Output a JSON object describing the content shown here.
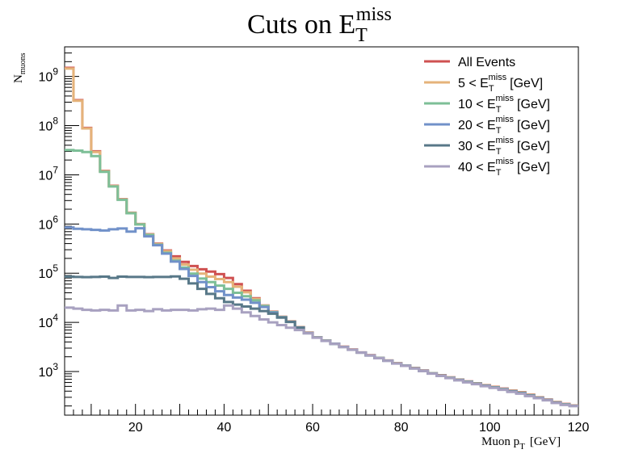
{
  "chart_data": {
    "type": "line",
    "title": "Cuts on E",
    "title_sup": "miss",
    "title_sub": "T",
    "xlabel": "Muon p",
    "xlabel_sub": "T",
    "xlabel_unit": "[GeV]",
    "ylabel": "N",
    "ylabel_sub": "muons",
    "xlim": [
      4,
      120
    ],
    "ylim": [
      130,
      4000000000
    ],
    "yscale": "log",
    "grid": false,
    "legend_position": "top-right",
    "x_ticks": [
      20,
      40,
      60,
      80,
      100,
      120
    ],
    "y_ticks": [
      {
        "value": 1000,
        "base": "10",
        "exp": "3"
      },
      {
        "value": 10000,
        "base": "10",
        "exp": "4"
      },
      {
        "value": 100000,
        "base": "10",
        "exp": "5"
      },
      {
        "value": 1000000,
        "base": "10",
        "exp": "6"
      },
      {
        "value": 10000000,
        "base": "10",
        "exp": "7"
      },
      {
        "value": 100000000,
        "base": "10",
        "exp": "8"
      },
      {
        "value": 1000000000,
        "base": "10",
        "exp": "9"
      }
    ],
    "bin_edges": [
      4,
      6,
      8,
      10,
      12,
      14,
      16,
      18,
      20,
      22,
      24,
      26,
      28,
      30,
      32,
      34,
      36,
      38,
      40,
      42,
      44,
      46,
      48,
      50,
      52,
      54,
      56,
      58,
      60,
      62,
      64,
      66,
      68,
      70,
      72,
      74,
      76,
      78,
      80,
      82,
      84,
      86,
      88,
      90,
      92,
      94,
      96,
      98,
      100,
      102,
      104,
      106,
      108,
      110,
      112,
      114,
      116,
      118,
      120
    ],
    "series": [
      {
        "name": "All Events",
        "prefix": "",
        "color": "#cf5151",
        "values": [
          1500000000,
          330000000,
          90000000,
          30000000,
          12000000,
          6000000,
          3200000,
          1700000,
          1000000,
          620000,
          400000,
          290000,
          220000,
          170000,
          140000,
          120000,
          108000,
          96000,
          80000,
          60000,
          44000,
          31000,
          22000,
          16500,
          13000,
          10500,
          8000,
          6200,
          5000,
          4300,
          3700,
          3200,
          2800,
          2450,
          2150,
          1900,
          1680,
          1480,
          1330,
          1180,
          1050,
          930,
          840,
          760,
          690,
          630,
          580,
          530,
          490,
          450,
          410,
          380,
          340,
          300,
          270,
          240,
          220,
          205
        ]
      },
      {
        "name": "5 < E",
        "prefix": "5 < E",
        "color": "#e5b37a",
        "values": [
          1450000000,
          320000000,
          88000000,
          29000000,
          11800000,
          5900000,
          3150000,
          1680000,
          990000,
          610000,
          392000,
          280000,
          200000,
          150000,
          118000,
          98000,
          85000,
          76000,
          66000,
          53000,
          41000,
          30000,
          21800,
          16300,
          12900,
          10400,
          7950,
          6150,
          4980,
          4280,
          3690,
          3190,
          2790,
          2440,
          2140,
          1890,
          1675,
          1475,
          1325,
          1175,
          1045,
          925,
          835,
          755,
          685,
          625,
          575,
          525,
          485,
          445,
          405,
          375,
          335,
          297,
          268,
          238,
          218,
          203
        ]
      },
      {
        "name": "10 < E",
        "prefix": "10 < E",
        "color": "#7dbf97",
        "values": [
          32000000,
          31000000,
          29000000,
          24000000,
          11500000,
          5800000,
          3100000,
          1660000,
          980000,
          600000,
          380000,
          260000,
          180000,
          130000,
          98000,
          78000,
          66000,
          56000,
          48000,
          40000,
          34000,
          28000,
          21500,
          16100,
          12800,
          10300,
          7900,
          6100,
          4950,
          4260,
          3680,
          3180,
          2785,
          2435,
          2135,
          1885,
          1670,
          1470,
          1320,
          1170,
          1040,
          920,
          830,
          750,
          680,
          620,
          570,
          520,
          480,
          440,
          400,
          370,
          330,
          295,
          266,
          236,
          216,
          202
        ]
      },
      {
        "name": "20 < E",
        "prefix": "20 < E",
        "color": "#7191c9",
        "values": [
          850000,
          800000,
          780000,
          760000,
          740000,
          780000,
          810000,
          700000,
          820000,
          560000,
          370000,
          250000,
          172000,
          122000,
          88000,
          66000,
          52000,
          43000,
          36000,
          32000,
          29000,
          25000,
          20500,
          15800,
          12700,
          10250,
          7850,
          6050,
          4920,
          4240,
          3670,
          3170,
          2780,
          2430,
          2130,
          1880,
          1665,
          1465,
          1315,
          1165,
          1035,
          915,
          825,
          745,
          675,
          615,
          565,
          515,
          475,
          435,
          395,
          365,
          325,
          292,
          264,
          234,
          214,
          201
        ]
      },
      {
        "name": "30 < E",
        "prefix": "30 < E",
        "color": "#587888",
        "values": [
          85000,
          84000,
          83000,
          84000,
          85000,
          80000,
          85000,
          84000,
          84000,
          83000,
          84000,
          84000,
          86000,
          77000,
          62000,
          48000,
          38000,
          31000,
          26000,
          23000,
          21000,
          19000,
          17000,
          15000,
          12500,
          10200,
          7800,
          6000,
          4900,
          4220,
          3660,
          3160,
          2775,
          2425,
          2125,
          1875,
          1660,
          1460,
          1310,
          1160,
          1030,
          910,
          820,
          740,
          670,
          610,
          560,
          510,
          470,
          430,
          390,
          360,
          320,
          290,
          262,
          232,
          212,
          200
        ]
      },
      {
        "name": "40 < E",
        "prefix": "40 < E",
        "color": "#a8a1c0",
        "values": [
          20000,
          19000,
          18000,
          17500,
          18000,
          17500,
          22000,
          17500,
          18000,
          17000,
          18500,
          17500,
          18000,
          18000,
          17500,
          18500,
          19000,
          18000,
          22000,
          19000,
          16000,
          13500,
          11500,
          10000,
          8800,
          7800,
          7000,
          6000,
          4880,
          4200,
          3650,
          3150,
          2770,
          2420,
          2120,
          1870,
          1655,
          1455,
          1305,
          1155,
          1025,
          905,
          815,
          735,
          665,
          605,
          555,
          505,
          465,
          425,
          385,
          355,
          318,
          288,
          260,
          230,
          211,
          199
        ]
      }
    ],
    "legend_sup": "miss",
    "legend_sub": "T",
    "legend_unit": "[GeV]"
  }
}
